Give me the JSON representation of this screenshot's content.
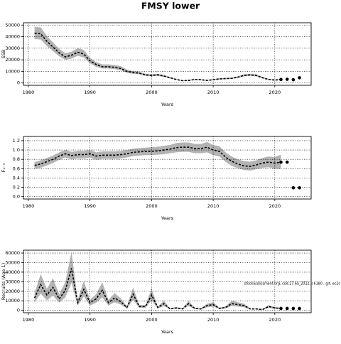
{
  "title": "FMSY lower",
  "watermark": "stockassessment.org, cod.27.6a_2022, r.6180 , git: ec2c",
  "chart_data": [
    {
      "type": "line",
      "y_label": "SSB",
      "x_label": "Years",
      "x": [
        1981,
        1982,
        1983,
        1984,
        1985,
        1986,
        1987,
        1988,
        1989,
        1990,
        1991,
        1992,
        1993,
        1994,
        1995,
        1996,
        1997,
        1998,
        1999,
        2000,
        2001,
        2002,
        2003,
        2004,
        2005,
        2006,
        2007,
        2008,
        2009,
        2010,
        2011,
        2012,
        2013,
        2014,
        2015,
        2016,
        2017,
        2018,
        2019,
        2020,
        2021
      ],
      "values": [
        43000,
        42500,
        36000,
        31000,
        26000,
        22500,
        24000,
        26500,
        25000,
        19000,
        16000,
        14000,
        14000,
        13500,
        12500,
        10000,
        9000,
        8500,
        7000,
        6500,
        7000,
        6000,
        4500,
        3000,
        2000,
        2200,
        3000,
        2800,
        2200,
        2800,
        3500,
        3800,
        4000,
        5000,
        6500,
        7000,
        6500,
        4500,
        3000,
        2500,
        3000
      ],
      "lower": [
        38000,
        37500,
        32000,
        27500,
        23000,
        20000,
        21000,
        23500,
        22000,
        17000,
        14000,
        12500,
        12500,
        12000,
        11000,
        8800,
        7900,
        7500,
        6100,
        5700,
        6100,
        5200,
        3900,
        2600,
        1700,
        1900,
        2600,
        2400,
        1900,
        2400,
        3000,
        3300,
        3500,
        4400,
        5700,
        6100,
        5700,
        3900,
        2600,
        2100,
        2500
      ],
      "upper": [
        48500,
        48000,
        40500,
        35000,
        29500,
        25500,
        27000,
        30000,
        28500,
        21500,
        18000,
        16000,
        16000,
        15500,
        14500,
        11500,
        10300,
        9700,
        8000,
        7500,
        8000,
        6900,
        5200,
        3500,
        2300,
        2600,
        3500,
        3300,
        2600,
        3300,
        4100,
        4400,
        4600,
        5800,
        7500,
        8000,
        7500,
        5200,
        3500,
        3000,
        3600
      ],
      "forecast_x": [
        2021,
        2022,
        2023,
        2024
      ],
      "forecast_values": [
        3000,
        3200,
        2800,
        4500
      ],
      "color": "#000000",
      "band_color": "#b3b3b3",
      "xlim": [
        1979.2,
        2025.9
      ],
      "xticks": [
        1980,
        1990,
        2000,
        2010,
        2020
      ],
      "ylim": [
        -2000,
        52000
      ],
      "yticks": [
        0,
        10000,
        20000,
        30000,
        40000,
        50000
      ],
      "grid": true
    },
    {
      "type": "line",
      "y_label": "F₂₋₅",
      "x_label": "Years",
      "x": [
        1981,
        1982,
        1983,
        1984,
        1985,
        1986,
        1987,
        1988,
        1989,
        1990,
        1991,
        1992,
        1993,
        1994,
        1995,
        1996,
        1997,
        1998,
        1999,
        2000,
        2001,
        2002,
        2003,
        2004,
        2005,
        2006,
        2007,
        2008,
        2009,
        2010,
        2011,
        2012,
        2013,
        2014,
        2015,
        2016,
        2017,
        2018,
        2019,
        2020,
        2021
      ],
      "values": [
        0.67,
        0.7,
        0.75,
        0.8,
        0.87,
        0.92,
        0.88,
        0.9,
        0.9,
        0.92,
        0.87,
        0.89,
        0.89,
        0.89,
        0.9,
        0.92,
        0.95,
        0.96,
        0.97,
        0.97,
        0.98,
        1.0,
        1.02,
        1.05,
        1.06,
        1.06,
        1.03,
        1.03,
        1.06,
        1.0,
        0.97,
        0.85,
        0.76,
        0.7,
        0.66,
        0.65,
        0.68,
        0.72,
        0.74,
        0.72,
        0.74
      ],
      "lower": [
        0.6,
        0.62,
        0.67,
        0.72,
        0.79,
        0.84,
        0.8,
        0.82,
        0.82,
        0.84,
        0.79,
        0.81,
        0.81,
        0.81,
        0.82,
        0.84,
        0.87,
        0.88,
        0.89,
        0.89,
        0.9,
        0.91,
        0.93,
        0.95,
        0.96,
        0.96,
        0.93,
        0.93,
        0.95,
        0.89,
        0.86,
        0.75,
        0.66,
        0.61,
        0.57,
        0.56,
        0.59,
        0.62,
        0.63,
        0.6,
        0.6
      ],
      "upper": [
        0.74,
        0.78,
        0.83,
        0.88,
        0.95,
        1.0,
        0.96,
        0.98,
        0.98,
        1.0,
        0.95,
        0.97,
        0.97,
        0.97,
        0.98,
        1.0,
        1.03,
        1.04,
        1.05,
        1.06,
        1.07,
        1.09,
        1.11,
        1.15,
        1.16,
        1.16,
        1.13,
        1.13,
        1.17,
        1.11,
        1.08,
        0.95,
        0.86,
        0.8,
        0.76,
        0.75,
        0.78,
        0.83,
        0.86,
        0.85,
        0.9
      ],
      "forecast_x": [
        2021,
        2022,
        2023,
        2024
      ],
      "forecast_values": [
        0.74,
        0.74,
        0.19,
        0.19
      ],
      "color": "#000000",
      "band_color": "#b3b3b3",
      "xlim": [
        1979.2,
        2025.9
      ],
      "xticks": [
        1980,
        1990,
        2000,
        2010,
        2020
      ],
      "ylim": [
        -0.05,
        1.29
      ],
      "yticks": [
        {
          "value": 0,
          "label": "0.0"
        },
        0.2,
        0.4,
        0.6,
        0.8,
        {
          "value": 1,
          "label": "1.0"
        },
        1.2
      ],
      "grid": true
    },
    {
      "type": "line",
      "y_label": "Recruits (Age 1)",
      "x_label": "Years",
      "x": [
        1981,
        1982,
        1983,
        1984,
        1985,
        1986,
        1987,
        1988,
        1989,
        1990,
        1991,
        1992,
        1993,
        1994,
        1995,
        1996,
        1997,
        1998,
        1999,
        2000,
        2001,
        2002,
        2003,
        2004,
        2005,
        2006,
        2007,
        2008,
        2009,
        2010,
        2011,
        2012,
        2013,
        2014,
        2015,
        2016,
        2017,
        2018,
        2019,
        2020,
        2021
      ],
      "values": [
        13000,
        27000,
        16000,
        24000,
        12000,
        21000,
        44000,
        8000,
        22000,
        8000,
        12000,
        21000,
        8000,
        13000,
        9000,
        3000,
        17000,
        4000,
        4000,
        16000,
        3000,
        7000,
        1500,
        2500,
        1500,
        7000,
        2000,
        1500,
        5000,
        6000,
        2000,
        3000,
        7000,
        6000,
        5000,
        1500,
        1500,
        800,
        4000,
        2500,
        2000
      ],
      "lower": [
        8500,
        17500,
        10500,
        15500,
        8000,
        13500,
        29000,
        5000,
        14500,
        5000,
        8000,
        13500,
        5000,
        8500,
        6000,
        2000,
        11000,
        2600,
        2600,
        10500,
        2000,
        4500,
        1000,
        1600,
        1000,
        4500,
        1300,
        1000,
        3200,
        3900,
        1300,
        2000,
        4500,
        3900,
        3200,
        1000,
        1000,
        500,
        2600,
        1600,
        1300
      ],
      "upper": [
        18000,
        38000,
        22500,
        33500,
        17000,
        29500,
        61000,
        11000,
        31000,
        11000,
        17000,
        29500,
        11000,
        18000,
        12500,
        4200,
        24000,
        5600,
        5600,
        22500,
        4200,
        10000,
        2100,
        3500,
        2100,
        10000,
        2800,
        2100,
        7000,
        8500,
        2800,
        4200,
        10000,
        8500,
        7000,
        2100,
        2100,
        1100,
        5600,
        3500,
        2800
      ],
      "forecast_x": [
        2021,
        2022,
        2023,
        2024
      ],
      "forecast_values": [
        2000,
        2000,
        2000,
        2000
      ],
      "color": "#000000",
      "band_color": "#b3b3b3",
      "xlim": [
        1979.2,
        2025.9
      ],
      "xticks": [
        1980,
        1990,
        2000,
        2010,
        2020
      ],
      "ylim": [
        -2500,
        63000
      ],
      "yticks": [
        0,
        10000,
        20000,
        30000,
        40000,
        50000,
        60000
      ],
      "grid": true
    }
  ]
}
